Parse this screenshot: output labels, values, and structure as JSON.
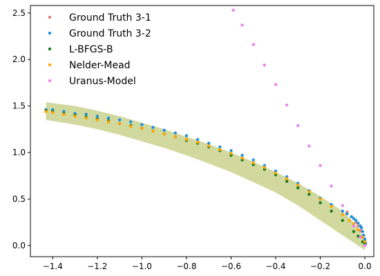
{
  "chart_data": {
    "type": "scatter",
    "title": "",
    "xlabel": "",
    "ylabel": "",
    "xlim": [
      -1.5,
      0.04
    ],
    "ylim": [
      -0.12,
      2.58
    ],
    "grid": false,
    "legend_placement": "top-left",
    "xticks": [
      -1.4,
      -1.2,
      -1.0,
      -0.8,
      -0.6,
      -0.4,
      -0.2,
      0.0
    ],
    "xtick_labels": [
      "−1.4",
      "−1.2",
      "−1.0",
      "−0.8",
      "−0.6",
      "−0.4",
      "−0.2",
      "0.0"
    ],
    "yticks": [
      0.0,
      0.5,
      1.0,
      1.5,
      2.0,
      2.5
    ],
    "ytick_labels": [
      "0.0",
      "0.5",
      "1.0",
      "1.5",
      "2.0",
      "2.5"
    ],
    "band": {
      "color": "#9aab2a",
      "opacity": 0.45,
      "x": [
        -1.43,
        -1.3,
        -1.2,
        -1.1,
        -1.0,
        -0.9,
        -0.8,
        -0.7,
        -0.6,
        -0.5,
        -0.4,
        -0.3,
        -0.2,
        -0.15,
        -0.1,
        -0.05,
        0.0
      ],
      "y_lower": [
        1.35,
        1.3,
        1.25,
        1.19,
        1.12,
        1.05,
        0.97,
        0.88,
        0.79,
        0.68,
        0.57,
        0.43,
        0.27,
        0.19,
        0.11,
        0.03,
        -0.05
      ],
      "y_upper": [
        1.54,
        1.5,
        1.45,
        1.39,
        1.32,
        1.25,
        1.17,
        1.09,
        1.0,
        0.9,
        0.79,
        0.67,
        0.53,
        0.45,
        0.37,
        0.25,
        0.08
      ]
    },
    "series": [
      {
        "name": "Ground Truth 3-1",
        "color": "#e07b7b",
        "x": [
          -0.08,
          -0.06,
          -0.04,
          -0.03,
          -0.02,
          -0.01,
          0.0
        ],
        "y": [
          0.36,
          0.31,
          0.25,
          0.21,
          0.16,
          0.1,
          0.03
        ]
      },
      {
        "name": "Ground Truth 3-2",
        "color": "#1f8fde",
        "x": [
          -1.43,
          -1.4,
          -1.35,
          -1.3,
          -1.25,
          -1.2,
          -1.15,
          -1.1,
          -1.05,
          -1.0,
          -0.95,
          -0.9,
          -0.85,
          -0.8,
          -0.75,
          -0.7,
          -0.65,
          -0.6,
          -0.55,
          -0.5,
          -0.45,
          -0.4,
          -0.35,
          -0.3,
          -0.25,
          -0.2,
          -0.15,
          -0.1,
          -0.08,
          -0.06,
          -0.05,
          -0.04,
          -0.03,
          -0.02,
          -0.015,
          -0.01,
          -0.005,
          0.0,
          0.002,
          0.003
        ],
        "y": [
          1.46,
          1.46,
          1.44,
          1.42,
          1.41,
          1.39,
          1.37,
          1.35,
          1.33,
          1.3,
          1.27,
          1.24,
          1.21,
          1.18,
          1.14,
          1.1,
          1.06,
          1.02,
          0.97,
          0.92,
          0.86,
          0.8,
          0.74,
          0.67,
          0.59,
          0.51,
          0.44,
          0.37,
          0.34,
          0.31,
          0.29,
          0.27,
          0.24,
          0.21,
          0.19,
          0.15,
          0.11,
          0.07,
          0.04,
          0.02
        ]
      },
      {
        "name": "L-BFGS-B",
        "color": "#1a7a1a",
        "x": [
          -1.43,
          -1.4,
          -1.35,
          -1.3,
          -1.25,
          -1.2,
          -1.15,
          -1.1,
          -1.05,
          -1.0,
          -0.95,
          -0.9,
          -0.85,
          -0.8,
          -0.75,
          -0.7,
          -0.65,
          -0.6,
          -0.55,
          -0.5,
          -0.45,
          -0.4,
          -0.35,
          -0.3,
          -0.25,
          -0.2,
          -0.15,
          -0.1,
          -0.05,
          -0.03,
          -0.01,
          0.0
        ],
        "y": [
          1.45,
          1.44,
          1.42,
          1.4,
          1.38,
          1.36,
          1.34,
          1.31,
          1.29,
          1.26,
          1.23,
          1.2,
          1.17,
          1.13,
          1.1,
          1.06,
          1.02,
          0.97,
          0.92,
          0.87,
          0.82,
          0.76,
          0.69,
          0.62,
          0.55,
          0.46,
          0.37,
          0.27,
          0.15,
          0.1,
          0.04,
          0.02
        ]
      },
      {
        "name": "Nelder-Mead",
        "color": "#ffa500",
        "x": [
          -1.43,
          -1.4,
          -1.35,
          -1.3,
          -1.25,
          -1.2,
          -1.15,
          -1.1,
          -1.05,
          -1.0,
          -0.95,
          -0.9,
          -0.85,
          -0.8,
          -0.75,
          -0.7,
          -0.65,
          -0.6,
          -0.55,
          -0.5,
          -0.45,
          -0.4,
          -0.35,
          -0.3,
          -0.25,
          -0.2,
          -0.15,
          -0.1,
          -0.07,
          -0.05,
          -0.03,
          -0.01,
          0.0
        ],
        "y": [
          1.44,
          1.43,
          1.41,
          1.39,
          1.37,
          1.35,
          1.33,
          1.31,
          1.28,
          1.26,
          1.23,
          1.2,
          1.17,
          1.14,
          1.11,
          1.07,
          1.03,
          0.99,
          0.94,
          0.89,
          0.84,
          0.78,
          0.72,
          0.65,
          0.58,
          0.5,
          0.42,
          0.33,
          0.27,
          0.23,
          0.17,
          0.09,
          0.04
        ]
      },
      {
        "name": "Uranus-Model",
        "color": "#ee82ee",
        "x": [
          -0.59,
          -0.55,
          -0.5,
          -0.45,
          -0.4,
          -0.35,
          -0.3,
          -0.25,
          -0.2,
          -0.15,
          -0.1,
          -0.05,
          -0.02,
          0.0
        ],
        "y": [
          2.53,
          2.37,
          2.16,
          1.94,
          1.73,
          1.51,
          1.29,
          1.07,
          0.86,
          0.64,
          0.43,
          0.21,
          0.09,
          0.0
        ]
      }
    ]
  }
}
